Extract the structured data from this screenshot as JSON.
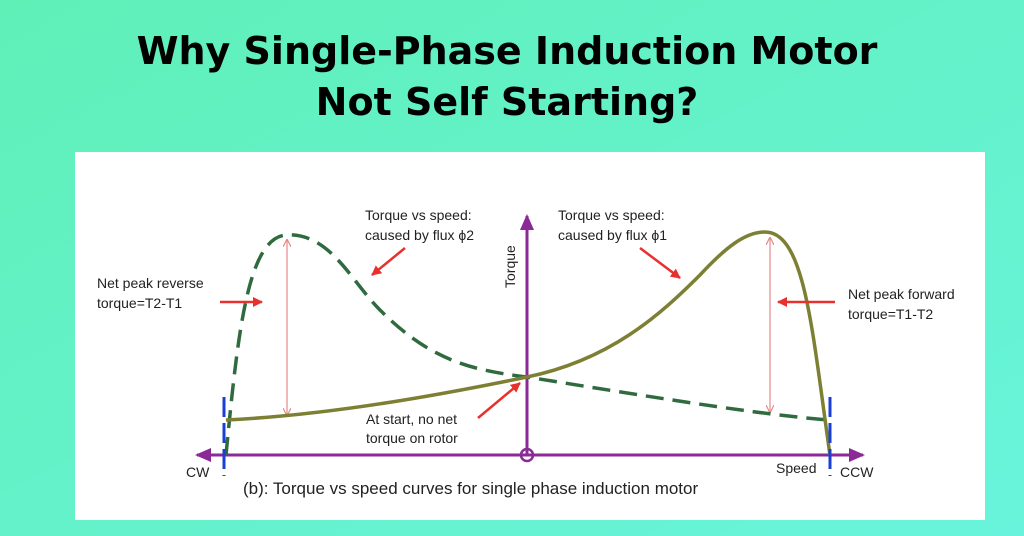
{
  "header": {
    "title_lines": [
      "Why Single-Phase Induction Motor",
      "Not Self Starting?"
    ]
  },
  "diagram": {
    "flux2_label": [
      "Torque vs speed:",
      "caused by flux ϕ2"
    ],
    "flux1_label": [
      "Torque vs speed:",
      "caused by flux ϕ1"
    ],
    "reverse_label": [
      "Net peak reverse",
      "torque=T2-T1"
    ],
    "forward_label": [
      "Net peak forward",
      "torque=T1-T2"
    ],
    "start_label": [
      "At start, no net",
      "torque on rotor"
    ],
    "y_axis": "Torque",
    "x_axis": "Speed",
    "left_end": "CW",
    "right_end": "CCW",
    "caption": "(b): Torque vs speed curves for single phase induction motor"
  }
}
